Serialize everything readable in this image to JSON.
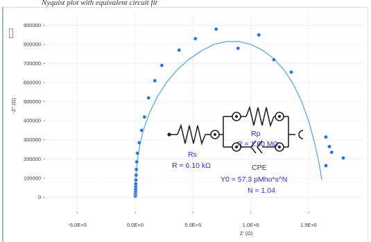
{
  "caption": "Nyquist plot with equivalent circuit fit",
  "chart_data": {
    "type": "scatter",
    "xlabel": "Z' (Ω)",
    "ylabel": "-Z'' (Ω)",
    "xlim": [
      -780000,
      1980000
    ],
    "ylim": [
      -75000,
      960000
    ],
    "x_ticks": [
      {
        "value": -500000,
        "label": "-5.0E+5"
      },
      {
        "value": 0,
        "label": "0.0E+0"
      },
      {
        "value": 500000,
        "label": "5.0E+5"
      },
      {
        "value": 1000000,
        "label": "1.0E+6"
      },
      {
        "value": 1500000,
        "label": "1.5E+6"
      }
    ],
    "y_ticks": [
      {
        "value": 0,
        "label": "0"
      },
      {
        "value": 100000,
        "label": "100000"
      },
      {
        "value": 200000,
        "label": "200000"
      },
      {
        "value": 300000,
        "label": "300000"
      },
      {
        "value": 400000,
        "label": "400000"
      },
      {
        "value": 500000,
        "label": "500000"
      },
      {
        "value": 600000,
        "label": "600000"
      },
      {
        "value": 700000,
        "label": "700000"
      },
      {
        "value": 800000,
        "label": "800000"
      },
      {
        "value": 900000,
        "label": "900000"
      }
    ],
    "grid": true,
    "series": [
      {
        "kind": "measured",
        "color": "#1f6fd1",
        "x": [
          1000,
          2000,
          2500,
          3000,
          3500,
          4000,
          5000,
          6000,
          8000,
          10000,
          13000,
          20000,
          35000,
          55000,
          80000,
          115000,
          170000,
          230000,
          380000,
          520000,
          700000,
          890000,
          1070000,
          1200000,
          1350000,
          1650000,
          1680000,
          1700000,
          1800000,
          1650000
        ],
        "y": [
          5000,
          12000,
          20000,
          30000,
          42000,
          55000,
          70000,
          90000,
          115000,
          145000,
          185000,
          230000,
          285000,
          350000,
          420000,
          520000,
          610000,
          690000,
          770000,
          830000,
          880000,
          780000,
          850000,
          720000,
          655000,
          315000,
          265000,
          235000,
          205000,
          165000
        ]
      },
      {
        "kind": "fit",
        "color": "#6fb3e6",
        "x": [
          0,
          2000,
          8000,
          22000,
          45000,
          80000,
          130000,
          190000,
          270000,
          360000,
          460000,
          570000,
          680000,
          790000,
          900000,
          1000000,
          1100000,
          1200000,
          1290000,
          1370000,
          1440000,
          1500000,
          1550000,
          1590000,
          1615000
        ],
        "y": [
          0,
          60000,
          130000,
          210000,
          290000,
          370000,
          450000,
          525000,
          600000,
          665000,
          720000,
          765000,
          800000,
          815000,
          815000,
          800000,
          770000,
          725000,
          665000,
          590000,
          500000,
          400000,
          290000,
          180000,
          90000
        ]
      }
    ]
  },
  "circuit": {
    "rs_name": "Rs",
    "rs_value": "R = 6.10 kΩ",
    "rp_name": "Rp",
    "rp_value": "R = 1.60 MΩ",
    "cpe_name": "CPE",
    "cpe_y0": "Y0 = 57.3 pMho*s^N",
    "cpe_n": "N = 1.04"
  }
}
